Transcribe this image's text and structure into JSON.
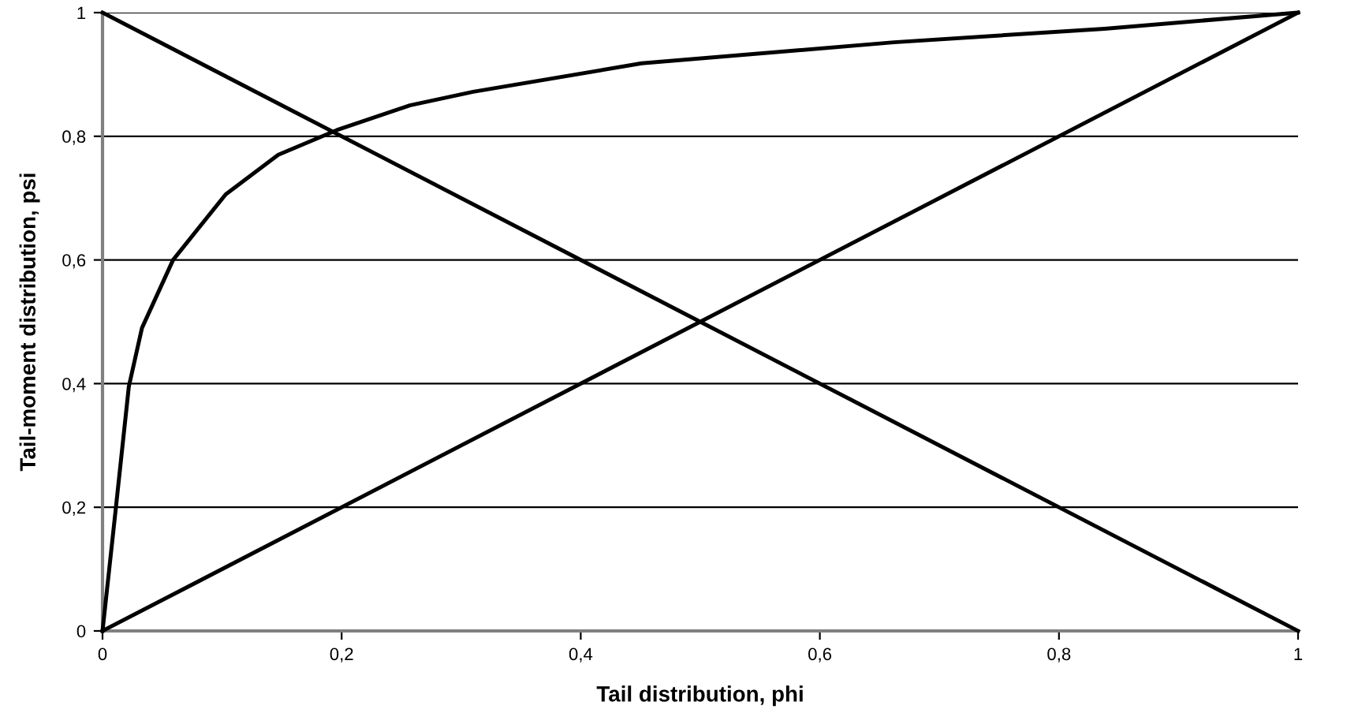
{
  "chart_data": {
    "type": "line",
    "xlabel": "Tail distribution, phi",
    "ylabel": "Tail-moment distribution, psi",
    "xlim": [
      0,
      1
    ],
    "ylim": [
      0,
      1
    ],
    "xticks": [
      0,
      {
        "value": 0.2,
        "label": "0,2"
      },
      {
        "value": 0.4,
        "label": "0,4"
      },
      {
        "value": 0.6,
        "label": "0,6"
      },
      {
        "value": 0.8,
        "label": "0,8"
      },
      1
    ],
    "yticks": [
      0,
      {
        "value": 0.2,
        "label": "0,2"
      },
      {
        "value": 0.4,
        "label": "0,4"
      },
      {
        "value": 0.6,
        "label": "0,6"
      },
      {
        "value": 0.8,
        "label": "0,8"
      },
      1
    ],
    "grid": "y",
    "marker": "none",
    "line_style": "solid",
    "series": [
      {
        "color": "#000000",
        "x": [
          0,
          0.011,
          0.022,
          0.033,
          0.059,
          0.103,
          0.147,
          0.196,
          0.257,
          0.31,
          0.451,
          0.662,
          0.838,
          1
        ],
        "values": [
          0,
          0.196,
          0.395,
          0.49,
          0.6,
          0.706,
          0.77,
          0.81,
          0.85,
          0.872,
          0.918,
          0.952,
          0.974,
          1
        ]
      },
      {
        "color": "#000000",
        "x": [
          0,
          1
        ],
        "values": [
          0,
          1
        ]
      },
      {
        "color": "#000000",
        "x": [
          0,
          1
        ],
        "values": [
          1,
          0
        ]
      }
    ]
  }
}
